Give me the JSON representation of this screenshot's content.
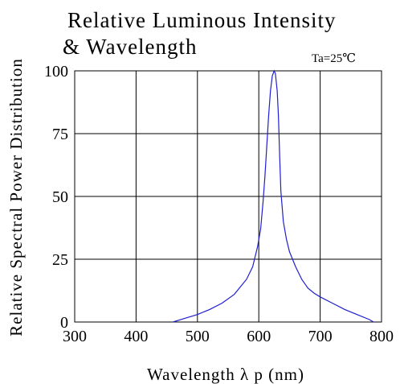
{
  "chart_data": {
    "type": "line",
    "title": "Relative Luminous Intensity",
    "subtitle": "& Wavelength",
    "annotation": "Ta=25℃",
    "xlabel": "Wavelength λ p (nm)",
    "ylabel": "Relative Spectral Power Distribution",
    "xlim": [
      300,
      800
    ],
    "ylim": [
      0,
      100
    ],
    "x_ticks": [
      "300",
      "400",
      "500",
      "600",
      "700",
      "800"
    ],
    "y_ticks": [
      "0",
      "25",
      "50",
      "75",
      "100"
    ],
    "grid": true,
    "line_color": "#1f1fd0",
    "series": [
      {
        "x": [
          460,
          480,
          500,
          520,
          540,
          560,
          580,
          590,
          598,
          603,
          607,
          610,
          613,
          616,
          619,
          622,
          625,
          627,
          630,
          632,
          634,
          636,
          640,
          645,
          650,
          660,
          670,
          680,
          690,
          700,
          720,
          740,
          760,
          780,
          787
        ],
        "values": [
          0,
          1.5,
          3,
          5,
          7.5,
          11,
          17,
          22,
          30,
          37,
          48,
          58,
          70,
          82,
          92,
          98,
          100,
          99,
          92,
          82,
          66,
          52,
          40,
          33,
          28,
          22,
          17,
          13.5,
          11.5,
          10,
          7.5,
          5,
          3,
          1,
          0
        ]
      }
    ]
  }
}
